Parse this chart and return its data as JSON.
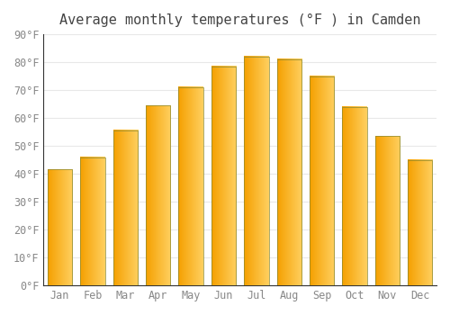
{
  "title": "Average monthly temperatures (°F ) in Camden",
  "months": [
    "Jan",
    "Feb",
    "Mar",
    "Apr",
    "May",
    "Jun",
    "Jul",
    "Aug",
    "Sep",
    "Oct",
    "Nov",
    "Dec"
  ],
  "values": [
    41.5,
    46.0,
    55.5,
    64.5,
    71.0,
    78.5,
    82.0,
    81.0,
    75.0,
    64.0,
    53.5,
    45.0
  ],
  "bar_color_left": "#F5A000",
  "bar_color_right": "#FFD060",
  "ylim": [
    0,
    90
  ],
  "yticks": [
    0,
    10,
    20,
    30,
    40,
    50,
    60,
    70,
    80,
    90
  ],
  "ytick_labels": [
    "0°F",
    "10°F",
    "20°F",
    "30°F",
    "40°F",
    "50°F",
    "60°F",
    "70°F",
    "80°F",
    "90°F"
  ],
  "title_fontsize": 11,
  "tick_fontsize": 8.5,
  "background_color": "#ffffff",
  "grid_color": "#e8e8e8",
  "bar_edge_color": "#888844",
  "bar_width": 0.75
}
